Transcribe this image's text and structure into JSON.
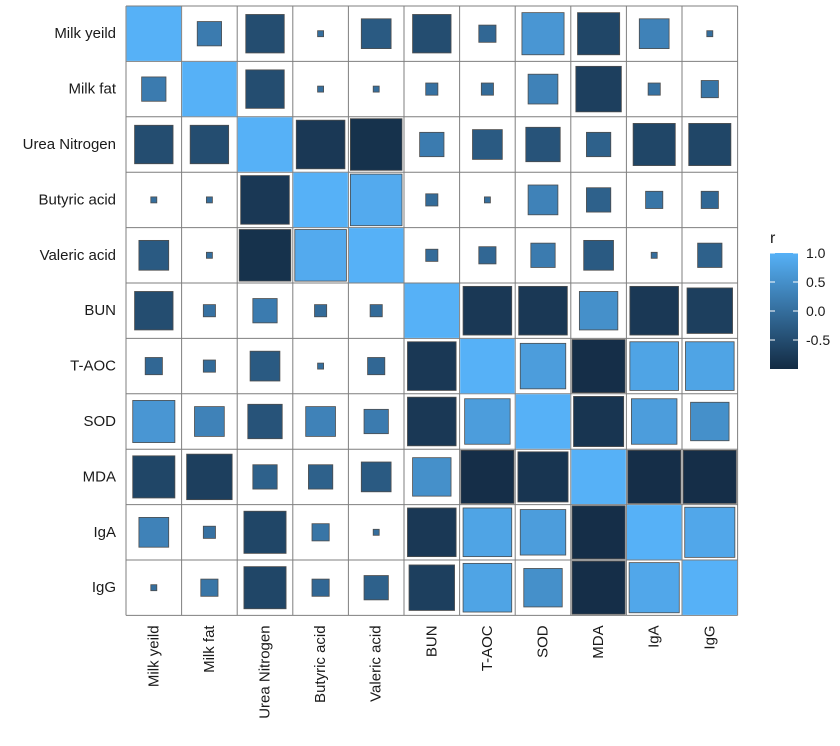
{
  "chart_data": {
    "type": "heatmap",
    "subtype": "correlation-matrix-squares",
    "variables": [
      "Milk yeild",
      "Milk fat",
      "Urea Nitrogen",
      "Butyric acid",
      "Valeric acid",
      "BUN",
      "T-AOC",
      "SOD",
      "MDA",
      "IgA",
      "IgG"
    ],
    "matrix": [
      [
        1.0,
        0.2,
        -0.5,
        0.0,
        -0.3,
        -0.5,
        -0.1,
        0.6,
        -0.6,
        0.3,
        0.0
      ],
      [
        0.2,
        1.0,
        -0.5,
        0.0,
        0.0,
        0.05,
        -0.05,
        0.3,
        -0.7,
        0.05,
        0.1
      ],
      [
        -0.5,
        -0.5,
        1.0,
        -0.8,
        -0.9,
        0.2,
        -0.3,
        -0.4,
        -0.2,
        -0.6,
        -0.6
      ],
      [
        0.0,
        0.0,
        -0.8,
        1.0,
        0.9,
        -0.05,
        0.0,
        0.3,
        -0.2,
        0.1,
        -0.1
      ],
      [
        -0.3,
        0.0,
        -0.9,
        0.9,
        1.0,
        -0.05,
        -0.1,
        0.2,
        -0.3,
        0.0,
        -0.2
      ],
      [
        -0.5,
        0.05,
        0.2,
        -0.05,
        -0.05,
        1.0,
        -0.8,
        -0.8,
        0.5,
        -0.8,
        -0.7
      ],
      [
        -0.1,
        -0.05,
        -0.3,
        0.0,
        -0.1,
        -0.8,
        1.0,
        0.7,
        -0.95,
        0.8,
        0.8
      ],
      [
        0.6,
        0.3,
        -0.4,
        0.3,
        0.2,
        -0.8,
        0.7,
        1.0,
        -0.85,
        0.7,
        0.5
      ],
      [
        -0.6,
        -0.7,
        -0.2,
        -0.2,
        -0.3,
        0.5,
        -0.95,
        -0.85,
        1.0,
        -0.95,
        -0.95
      ],
      [
        0.3,
        0.05,
        -0.6,
        0.1,
        0.0,
        -0.8,
        0.8,
        0.7,
        -0.95,
        1.0,
        0.85
      ],
      [
        0.0,
        0.1,
        -0.6,
        -0.1,
        -0.2,
        -0.7,
        0.8,
        0.5,
        -0.95,
        0.85,
        1.0
      ]
    ],
    "legend": {
      "title": "r",
      "ticks": [
        "1.0",
        "0.5",
        "0.0",
        "-0.5"
      ],
      "tick_values": [
        1.0,
        0.5,
        0.0,
        -0.5
      ],
      "range": [
        -1.0,
        1.0
      ],
      "placement": "right"
    },
    "colors": {
      "high": "#56B1F7",
      "low": "#132B43",
      "grid": "#7f7f7f",
      "tile_border": "#4d4d4d"
    }
  }
}
